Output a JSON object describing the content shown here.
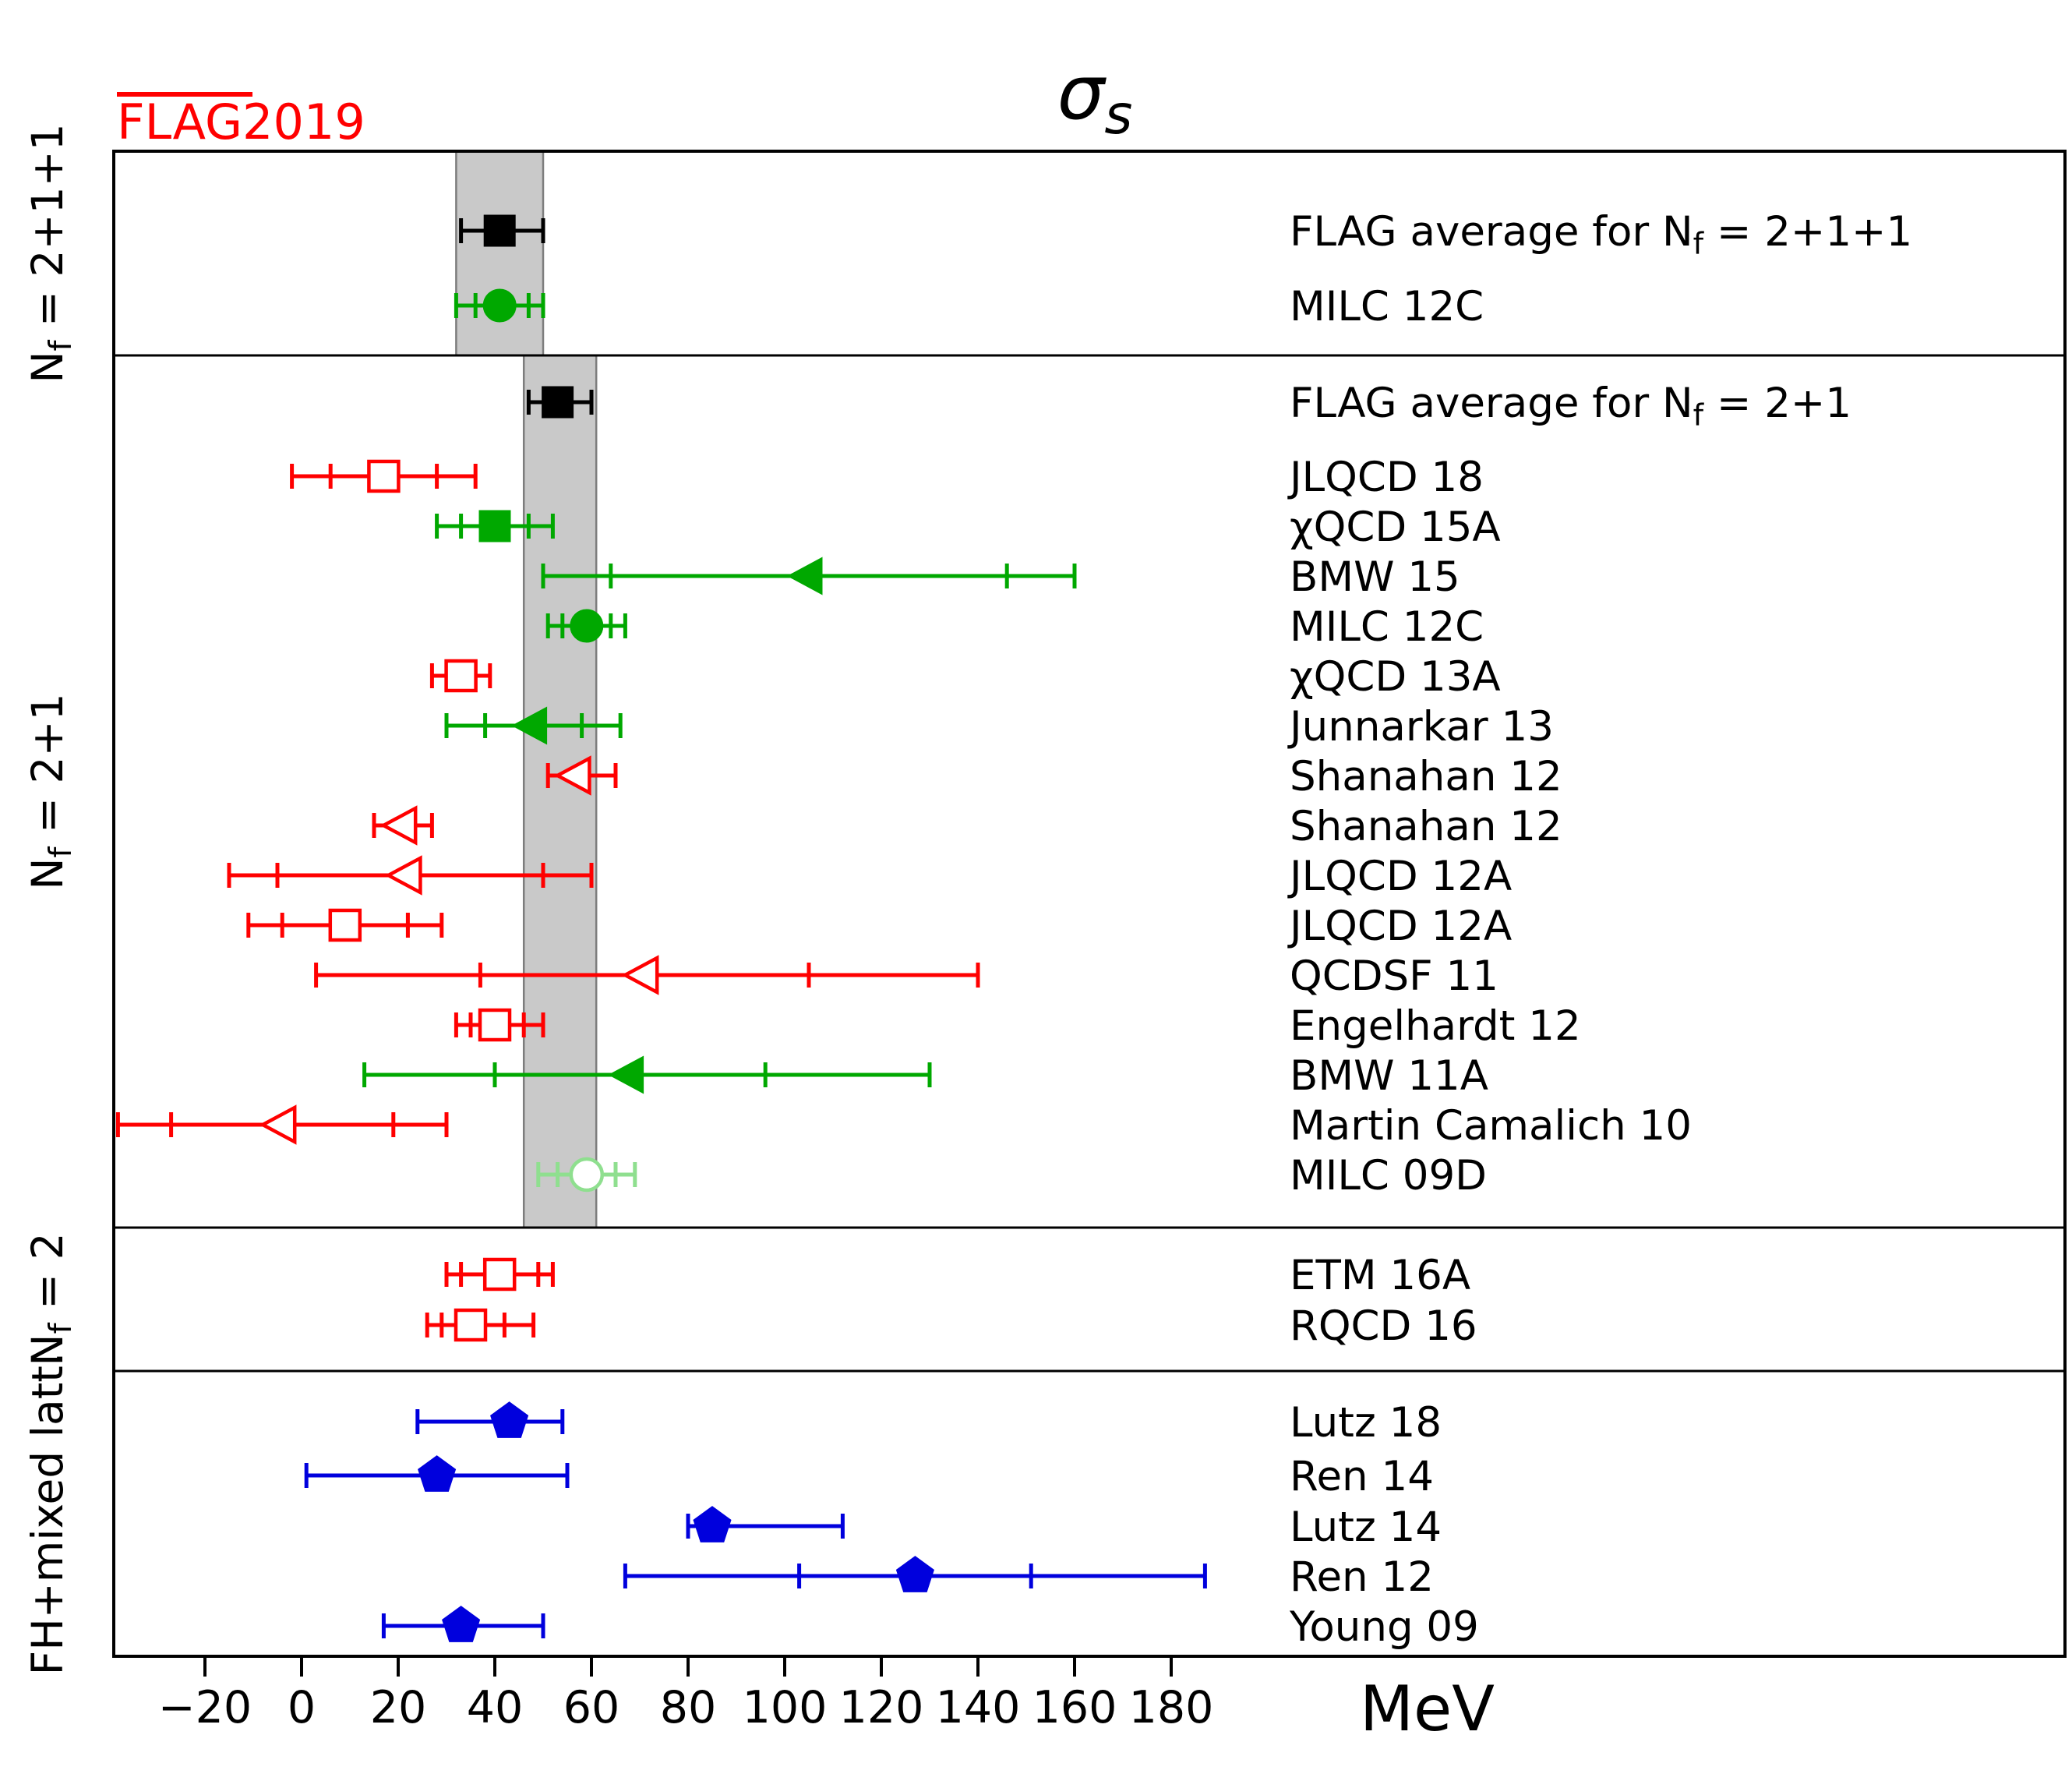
{
  "header": {
    "flag_label": "FLAG2019",
    "flag_color": "#ff0000"
  },
  "chart_data": {
    "type": "scatter",
    "subtype": "horizontal-errorbar-summary-forest",
    "title": "σ_s",
    "xlabel": "MeV",
    "x_ticks": [
      -20,
      0,
      20,
      40,
      60,
      80,
      100,
      120,
      140,
      160,
      180
    ],
    "xlim": [
      -39,
      365
    ],
    "grid": false,
    "legend": "none",
    "palette": {
      "green": "#00a800",
      "pale_green": "#8fdf8f",
      "red": "#ff0000",
      "blue": "#0000dd",
      "black": "#000000",
      "band_gray": "#c9c9c9",
      "band_edge": "#7d7d7d"
    },
    "bands": [
      {
        "section": "nf2p1p1",
        "range": [
          32,
          50
        ]
      },
      {
        "section": "nf2p1",
        "range": [
          46,
          61
        ]
      }
    ],
    "sections": [
      {
        "id": "nf2p1p1",
        "label": "N_f = 2+1+1",
        "entries": [
          {
            "label": "FLAG average for N_f = 2+1+1",
            "marker": "square",
            "color": "black",
            "filled": true,
            "x": 41,
            "outer": [
              33,
              50
            ]
          },
          {
            "label": "MILC 12C",
            "marker": "circle",
            "color": "green",
            "filled": true,
            "x": 41,
            "inner": [
              36,
              47
            ],
            "outer": [
              32,
              50
            ]
          }
        ]
      },
      {
        "id": "nf2p1",
        "label": "N_f = 2+1",
        "entries": [
          {
            "label": "FLAG average for N_f = 2+1",
            "marker": "square",
            "color": "black",
            "filled": true,
            "x": 53,
            "outer": [
              47,
              60
            ]
          },
          {
            "label": "JLQCD 18",
            "marker": "square",
            "color": "red",
            "filled": false,
            "x": 17,
            "inner": [
              6,
              28
            ],
            "outer": [
              -2,
              36
            ]
          },
          {
            "label": "χQCD 15A",
            "marker": "square",
            "color": "green",
            "filled": true,
            "x": 40,
            "inner": [
              33,
              47
            ],
            "outer": [
              28,
              52
            ]
          },
          {
            "label": "BMW 15",
            "marker": "triangle-left",
            "color": "green",
            "filled": true,
            "x": 105,
            "inner": [
              64,
              146
            ],
            "outer": [
              50,
              160
            ]
          },
          {
            "label": "MILC 12C",
            "marker": "circle",
            "color": "green",
            "filled": true,
            "x": 59,
            "inner": [
              54,
              64
            ],
            "outer": [
              51,
              67
            ]
          },
          {
            "label": "χQCD 13A",
            "marker": "square",
            "color": "red",
            "filled": false,
            "x": 33,
            "outer": [
              27,
              39
            ]
          },
          {
            "label": "Junnarkar 13",
            "marker": "triangle-left",
            "color": "green",
            "filled": true,
            "x": 48,
            "inner": [
              38,
              58
            ],
            "outer": [
              30,
              66
            ]
          },
          {
            "label": "Shanahan 12",
            "marker": "triangle-left",
            "color": "red",
            "filled": false,
            "x": 57,
            "outer": [
              51,
              65
            ]
          },
          {
            "label": "Shanahan 12",
            "marker": "triangle-left",
            "color": "red",
            "filled": false,
            "x": 21,
            "outer": [
              15,
              27
            ]
          },
          {
            "label": "JLQCD 12A",
            "marker": "triangle-left",
            "color": "red",
            "filled": false,
            "x": 22,
            "inner": [
              -5,
              50
            ],
            "outer": [
              -15,
              60
            ]
          },
          {
            "label": "JLQCD 12A",
            "marker": "square",
            "color": "red",
            "filled": false,
            "x": 9,
            "inner": [
              -4,
              22
            ],
            "outer": [
              -11,
              29
            ]
          },
          {
            "label": "QCDSF 11",
            "marker": "triangle-left",
            "color": "red",
            "filled": false,
            "x": 71,
            "inner": [
              37,
              105
            ],
            "outer": [
              3,
              140
            ]
          },
          {
            "label": "Engelhardt 12",
            "marker": "square",
            "color": "red",
            "filled": false,
            "x": 40,
            "inner": [
              35,
              46
            ],
            "outer": [
              32,
              50
            ]
          },
          {
            "label": "BMW 11A",
            "marker": "triangle-left",
            "color": "green",
            "filled": true,
            "x": 68,
            "inner": [
              40,
              96
            ],
            "outer": [
              13,
              130
            ]
          },
          {
            "label": "Martin Camalich 10",
            "marker": "triangle-left",
            "color": "red",
            "filled": false,
            "x": -4,
            "inner": [
              -27,
              19
            ],
            "outer": [
              -38,
              30
            ]
          },
          {
            "label": "MILC 09D",
            "marker": "circle",
            "color": "pale_green",
            "filled": false,
            "x": 59,
            "inner": [
              53,
              65
            ],
            "outer": [
              49,
              69
            ]
          }
        ]
      },
      {
        "id": "nf2",
        "label": "N_f = 2",
        "entries": [
          {
            "label": "ETM 16A",
            "marker": "square",
            "color": "red",
            "filled": false,
            "x": 41,
            "inner": [
              33,
              49
            ],
            "outer": [
              30,
              52
            ]
          },
          {
            "label": "RQCD 16",
            "marker": "square",
            "color": "red",
            "filled": false,
            "x": 35,
            "inner": [
              29,
              42
            ],
            "outer": [
              26,
              48
            ]
          }
        ]
      },
      {
        "id": "fh_mixed",
        "label": "FH+mixed latt.",
        "entries": [
          {
            "label": "Lutz 18",
            "marker": "pentagon",
            "color": "blue",
            "filled": true,
            "x": 43,
            "outer": [
              24,
              54
            ]
          },
          {
            "label": "Ren 14",
            "marker": "pentagon",
            "color": "blue",
            "filled": true,
            "x": 28,
            "outer": [
              1,
              55
            ]
          },
          {
            "label": "Lutz 14",
            "marker": "pentagon",
            "color": "blue",
            "filled": true,
            "x": 85,
            "outer": [
              80,
              112
            ]
          },
          {
            "label": "Ren 12",
            "marker": "pentagon",
            "color": "blue",
            "filled": true,
            "x": 127,
            "inner": [
              103,
              151
            ],
            "outer": [
              67,
              187
            ]
          },
          {
            "label": "Young 09",
            "marker": "pentagon",
            "color": "blue",
            "filled": true,
            "x": 33,
            "outer": [
              17,
              50
            ]
          }
        ]
      }
    ]
  }
}
